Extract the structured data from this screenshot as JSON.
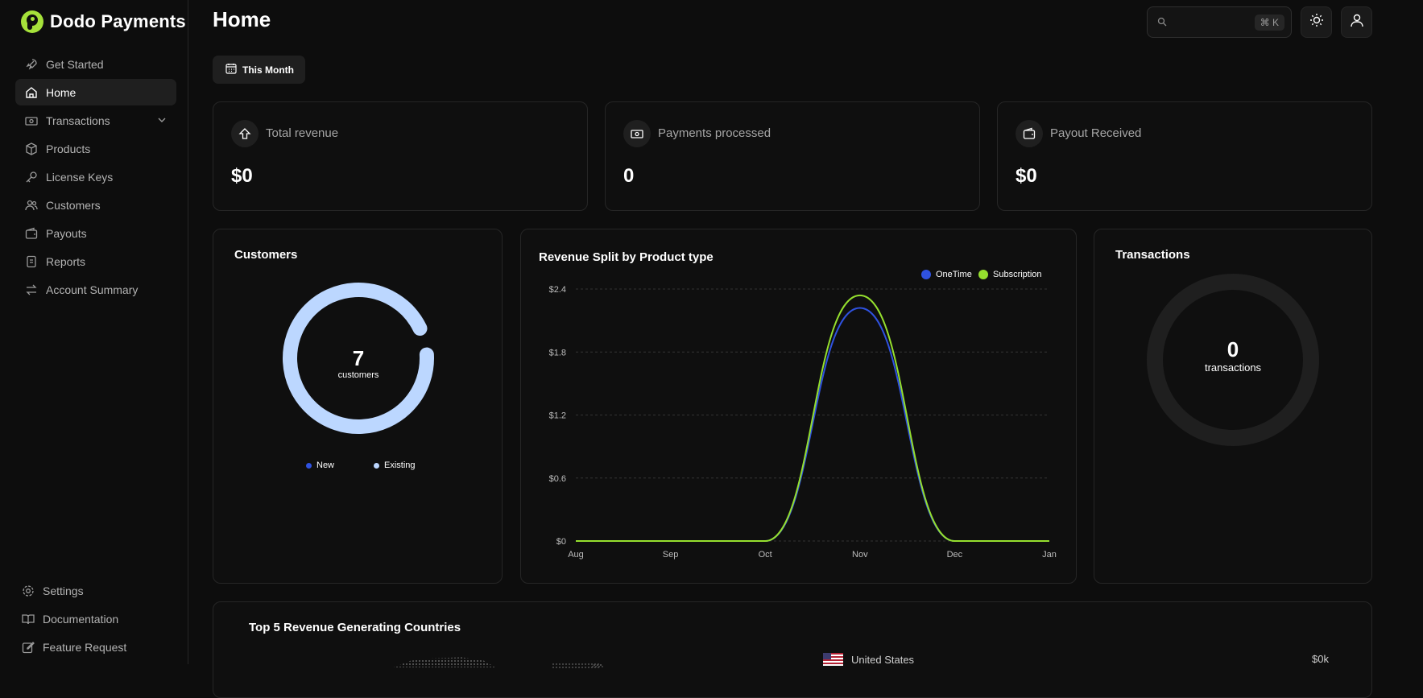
{
  "brand": {
    "name": "Dodo Payments",
    "accent": "#a5e13a"
  },
  "sidebar": {
    "items": [
      {
        "label": "Get Started",
        "icon": "rocket-icon"
      },
      {
        "label": "Home",
        "icon": "home-icon",
        "active": true
      },
      {
        "label": "Transactions",
        "icon": "banknote-icon",
        "expandable": true
      },
      {
        "label": "Products",
        "icon": "package-icon"
      },
      {
        "label": "License Keys",
        "icon": "key-icon"
      },
      {
        "label": "Customers",
        "icon": "users-icon"
      },
      {
        "label": "Payouts",
        "icon": "wallet-icon"
      },
      {
        "label": "Reports",
        "icon": "report-icon"
      },
      {
        "label": "Account Summary",
        "icon": "arrows-icon"
      }
    ],
    "bottom_items": [
      {
        "label": "Settings",
        "icon": "gear-icon"
      },
      {
        "label": "Documentation",
        "icon": "book-icon"
      },
      {
        "label": "Feature Request",
        "icon": "edit-icon"
      }
    ]
  },
  "header": {
    "title": "Home",
    "search": {
      "placeholder": "",
      "shortcut": "⌘ K"
    },
    "theme_icon": "sun-icon",
    "profile_icon": "user-icon"
  },
  "filter": {
    "label": "This Month",
    "icon": "calendar-icon"
  },
  "stats": [
    {
      "label": "Total revenue",
      "value": "$0",
      "icon": "arrow-up-icon"
    },
    {
      "label": "Payments processed",
      "value": "0",
      "icon": "banknote-icon"
    },
    {
      "label": "Payout Received",
      "value": "$0",
      "icon": "wallet-icon"
    }
  ],
  "customers_card": {
    "title": "Customers",
    "count": "7",
    "count_label": "customers",
    "legend": [
      {
        "name": "New",
        "color": "#2f52e0"
      },
      {
        "name": "Existing",
        "color": "#bcd7ff"
      }
    ],
    "segments": {
      "new": 0,
      "existing": 7
    }
  },
  "revenue_card": {
    "title": "Revenue Split by Product type"
  },
  "transactions_card": {
    "title": "Transactions",
    "count": "0",
    "count_label": "transactions"
  },
  "countries_card": {
    "title": "Top 5 Revenue Generating Countries",
    "rows": [
      {
        "country": "United States",
        "value": "$0k"
      }
    ]
  },
  "chart_data": {
    "type": "line",
    "title": "Revenue Split by Product type",
    "x": [
      "Aug",
      "Sep",
      "Oct",
      "Nov",
      "Dec",
      "Jan"
    ],
    "xlabel": "",
    "ylabel": "",
    "ylim": [
      0,
      2.4
    ],
    "yticks": [
      "$0",
      "$0.6",
      "$1.2",
      "$1.8",
      "$2.4"
    ],
    "grid": true,
    "legend_position": "top-right",
    "series": [
      {
        "name": "OneTime",
        "color": "#2f52e0",
        "values": [
          0,
          0,
          0,
          2.22,
          0,
          0
        ]
      },
      {
        "name": "Subscription",
        "color": "#95df2e",
        "values": [
          0,
          0,
          0,
          2.34,
          0,
          0
        ]
      }
    ]
  }
}
